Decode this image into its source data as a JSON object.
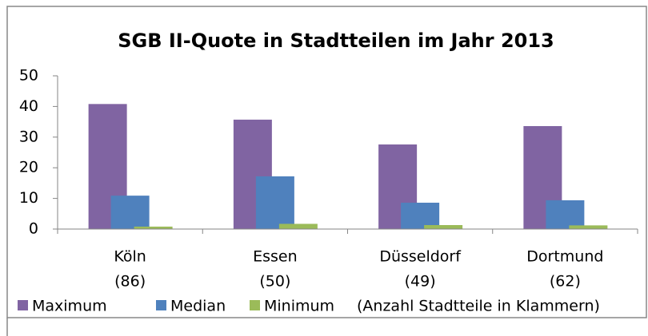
{
  "chart_data": {
    "type": "bar",
    "title": "SGB II-Quote in Stadtteilen im Jahr 2013",
    "categories": [
      "Köln",
      "Essen",
      "Düsseldorf",
      "Dortmund"
    ],
    "category_counts": [
      "(86)",
      "(50)",
      "(49)",
      "(62)"
    ],
    "series": [
      {
        "name": "Maximum",
        "color": "#8064a2",
        "values": [
          40.8,
          35.7,
          27.6,
          33.6
        ]
      },
      {
        "name": "Median",
        "color": "#4f81bd",
        "values": [
          10.9,
          17.2,
          8.6,
          9.4
        ]
      },
      {
        "name": "Minimum",
        "color": "#9bbb59",
        "values": [
          0.8,
          1.7,
          1.3,
          1.2
        ]
      }
    ],
    "legend_note": "(Anzahl Stadtteile in Klammern)",
    "ylim": [
      0,
      50
    ],
    "yticks": [
      0,
      10,
      20,
      30,
      40,
      50
    ],
    "grid": false
  }
}
